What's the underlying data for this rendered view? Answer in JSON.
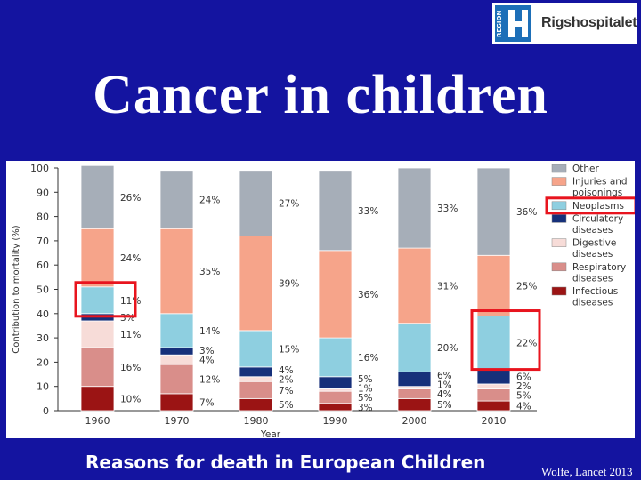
{
  "logo": {
    "region_text": "REGION",
    "name": "Rigshospitalet"
  },
  "title": "Cancer in children",
  "caption": "Reasons for death in European Children",
  "citation": "Wolfe, Lancet 2013",
  "chart_data": {
    "type": "bar",
    "stacked": true,
    "categories": [
      "1960",
      "1970",
      "1980",
      "1990",
      "2000",
      "2010"
    ],
    "xlabel": "Year",
    "ylabel": "Contribution to mortality (%)",
    "ylim": [
      0,
      100
    ],
    "yticks": [
      0,
      10,
      20,
      30,
      40,
      50,
      60,
      70,
      80,
      90,
      100
    ],
    "legend_position": "right",
    "series": [
      {
        "name": "Infectious diseases",
        "color": "#9b1414",
        "values": [
          10,
          7,
          5,
          3,
          5,
          4
        ],
        "labels": [
          "10%",
          "7%",
          "5%",
          "3%",
          "5%",
          "4%"
        ]
      },
      {
        "name": "Respiratory diseases",
        "color": "#d98e8a",
        "values": [
          16,
          12,
          7,
          5,
          4,
          5
        ],
        "labels": [
          "16%",
          "12%",
          "7%",
          "5%",
          "4%",
          "5%"
        ]
      },
      {
        "name": "Digestive diseases",
        "color": "#f7dcd8",
        "values": [
          11,
          4,
          2,
          1,
          1,
          2
        ],
        "labels": [
          "11%",
          "4%",
          "2%",
          "1%",
          "1%",
          "2%"
        ]
      },
      {
        "name": "Circulatory diseases",
        "color": "#16307a",
        "values": [
          3,
          3,
          4,
          5,
          6,
          6
        ],
        "labels": [
          "3%",
          "3%",
          "4%",
          "5%",
          "6%",
          "6%"
        ]
      },
      {
        "name": "Neoplasms",
        "color": "#8ecfe0",
        "values": [
          11,
          14,
          15,
          16,
          20,
          22
        ],
        "labels": [
          "11%",
          "14%",
          "15%",
          "16%",
          "20%",
          "22%"
        ]
      },
      {
        "name": "Injuries and poisonings",
        "color": "#f6a48a",
        "values": [
          24,
          35,
          39,
          36,
          31,
          25
        ],
        "labels": [
          "24%",
          "35%",
          "39%",
          "36%",
          "31%",
          "25%"
        ]
      },
      {
        "name": "Other",
        "color": "#a6aeb8",
        "values": [
          26,
          24,
          27,
          33,
          33,
          36
        ],
        "labels": [
          "26%",
          "24%",
          "27%",
          "33%",
          "33%",
          "36%"
        ]
      }
    ],
    "highlights": [
      {
        "type": "data_label",
        "series": "Neoplasms",
        "category": "1960"
      },
      {
        "type": "segment",
        "series": "Neoplasms",
        "category": "2010"
      },
      {
        "type": "legend_entry",
        "series": "Neoplasms"
      }
    ],
    "highlight_color": "#e8141e"
  }
}
